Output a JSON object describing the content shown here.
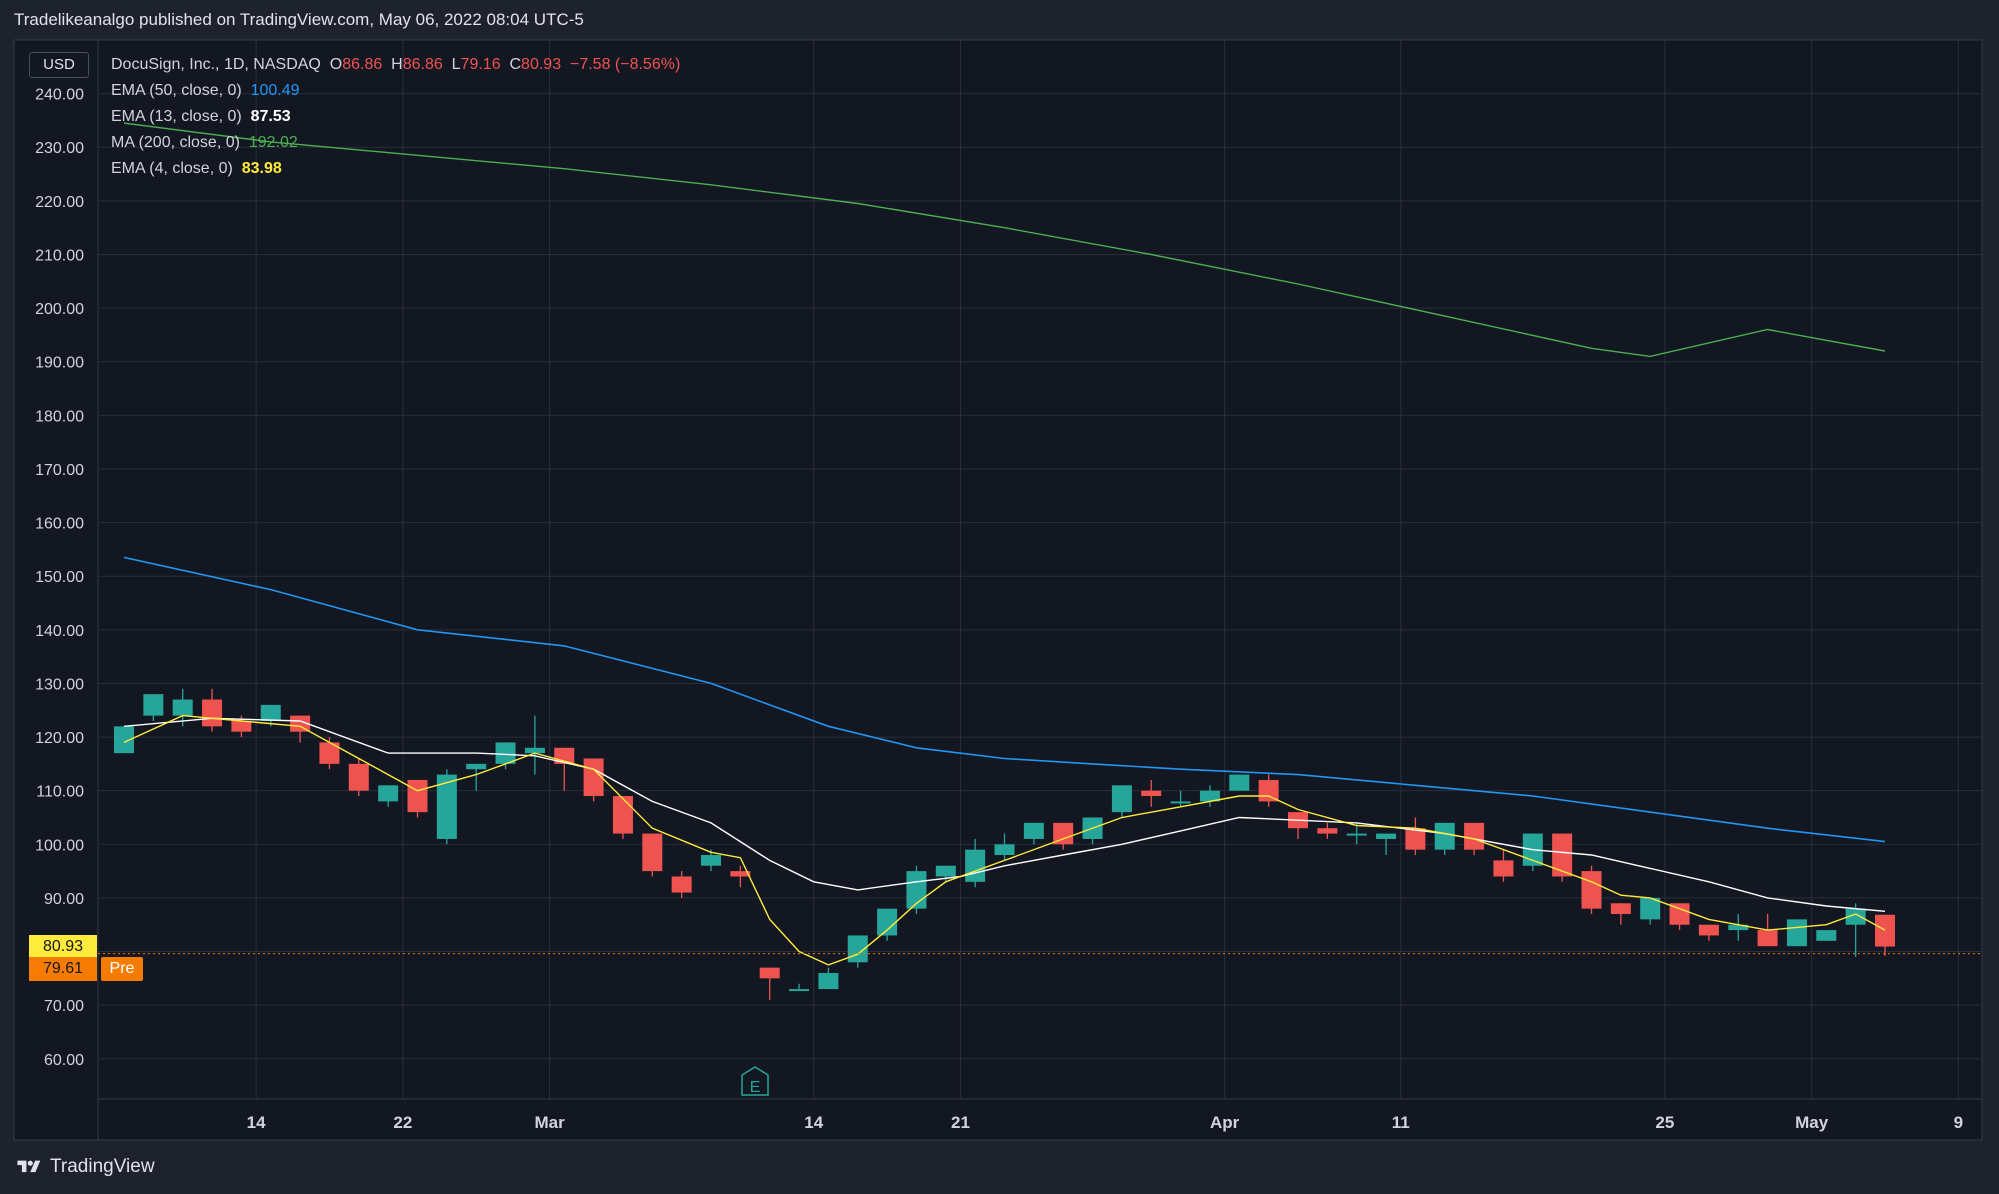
{
  "header": {
    "text": "Tradelikeanalgo published on TradingView.com, May 06, 2022 08:04 UTC-5"
  },
  "footer": {
    "brand": "TradingView"
  },
  "currency": "USD",
  "legend": {
    "symbol": "DocuSign, Inc., 1D, NASDAQ",
    "o_label": "O",
    "o_value": "86.86",
    "h_label": "H",
    "h_value": "86.86",
    "l_label": "L",
    "l_value": "79.16",
    "c_label": "C",
    "c_value": "80.93",
    "change": "−7.58 (−8.56%)",
    "indicators": [
      {
        "label": "EMA (50, close, 0)",
        "value": "100.49",
        "color": "#2196f3"
      },
      {
        "label": "EMA (13, close, 0)",
        "value": "87.53",
        "color": "#ffffff"
      },
      {
        "label": "MA (200, close, 0)",
        "value": "192.02",
        "color": "#4caf50"
      },
      {
        "label": "EMA (4, close, 0)",
        "value": "83.98",
        "color": "#ffeb3b"
      }
    ]
  },
  "price_labels": {
    "last": "80.93",
    "pre": "79.61",
    "pre_tag": "Pre"
  },
  "colors": {
    "background": "#131722",
    "grid": "#2a2e39",
    "up": "#26a69a",
    "down": "#ef5350",
    "ema50": "#2196f3",
    "ema13": "#ffffff",
    "ma200": "#4caf50",
    "ema4": "#ffeb3b",
    "last_price_bg": "#ffeb3b",
    "pre_bg": "#f57c00"
  },
  "chart_data": {
    "type": "candlestick",
    "title": "DocuSign, Inc., 1D, NASDAQ",
    "ylim": [
      52.5,
      250
    ],
    "y_ticks": [
      "60.00",
      "70.00",
      "80.00",
      "90.00",
      "100.00",
      "110.00",
      "120.00",
      "130.00",
      "140.00",
      "150.00",
      "160.00",
      "170.00",
      "180.00",
      "190.00",
      "200.00",
      "210.00",
      "220.00",
      "230.00",
      "240.00"
    ],
    "x_tick_labels": [
      {
        "label": "14",
        "bar": 4.5
      },
      {
        "label": "22",
        "bar": 9.5
      },
      {
        "label": "Mar",
        "bar": 14.5
      },
      {
        "label": "14",
        "bar": 23.5
      },
      {
        "label": "21",
        "bar": 28.5
      },
      {
        "label": "Apr",
        "bar": 37.5
      },
      {
        "label": "11",
        "bar": 43.5
      },
      {
        "label": "25",
        "bar": 52.5
      },
      {
        "label": "May",
        "bar": 57.5
      },
      {
        "label": "9",
        "bar": 62.5
      }
    ],
    "earnings_marker": {
      "label": "E",
      "bar": 21.5
    },
    "candles": [
      {
        "o": 117,
        "h": 122,
        "c": 122,
        "l": 117
      },
      {
        "o": 124,
        "h": 128,
        "c": 128,
        "l": 123
      },
      {
        "o": 124,
        "h": 129,
        "c": 127,
        "l": 122
      },
      {
        "o": 127,
        "h": 129,
        "c": 122,
        "l": 121
      },
      {
        "o": 123,
        "h": 124,
        "c": 121,
        "l": 120
      },
      {
        "o": 123,
        "h": 126,
        "c": 126,
        "l": 122
      },
      {
        "o": 124,
        "h": 124,
        "c": 121,
        "l": 119
      },
      {
        "o": 119,
        "h": 120,
        "c": 115,
        "l": 114
      },
      {
        "o": 115,
        "h": 116,
        "c": 110,
        "l": 109
      },
      {
        "o": 108,
        "h": 111,
        "c": 111,
        "l": 107
      },
      {
        "o": 112,
        "h": 112,
        "c": 106,
        "l": 105
      },
      {
        "o": 101,
        "h": 114,
        "c": 113,
        "l": 100
      },
      {
        "o": 114,
        "h": 115,
        "c": 115,
        "l": 110
      },
      {
        "o": 115,
        "h": 119,
        "c": 119,
        "l": 114
      },
      {
        "o": 117,
        "h": 124,
        "c": 118,
        "l": 113
      },
      {
        "o": 118,
        "h": 118,
        "c": 115,
        "l": 110
      },
      {
        "o": 116,
        "h": 116,
        "c": 109,
        "l": 108
      },
      {
        "o": 109,
        "h": 109,
        "c": 102,
        "l": 101
      },
      {
        "o": 102,
        "h": 102,
        "c": 95,
        "l": 94
      },
      {
        "o": 94,
        "h": 95,
        "c": 91,
        "l": 90
      },
      {
        "o": 96,
        "h": 99,
        "c": 98,
        "l": 95
      },
      {
        "o": 95,
        "h": 96,
        "c": 94,
        "l": 92
      },
      {
        "o": 77,
        "h": 77,
        "c": 75,
        "l": 71
      },
      {
        "o": 73,
        "h": 74,
        "c": 73,
        "l": 73
      },
      {
        "o": 73,
        "h": 77,
        "c": 76,
        "l": 73
      },
      {
        "o": 78,
        "h": 83,
        "c": 83,
        "l": 77
      },
      {
        "o": 83,
        "h": 88,
        "c": 88,
        "l": 82
      },
      {
        "o": 88,
        "h": 96,
        "c": 95,
        "l": 87
      },
      {
        "o": 94,
        "h": 96,
        "c": 96,
        "l": 93
      },
      {
        "o": 93,
        "h": 101,
        "c": 99,
        "l": 92
      },
      {
        "o": 98,
        "h": 102,
        "c": 100,
        "l": 97
      },
      {
        "o": 101,
        "h": 104,
        "c": 104,
        "l": 100
      },
      {
        "o": 104,
        "h": 104,
        "c": 100,
        "l": 99
      },
      {
        "o": 101,
        "h": 105,
        "c": 105,
        "l": 100
      },
      {
        "o": 106,
        "h": 111,
        "c": 111,
        "l": 105
      },
      {
        "o": 110,
        "h": 112,
        "c": 109,
        "l": 107
      },
      {
        "o": 108,
        "h": 110,
        "c": 108,
        "l": 107
      },
      {
        "o": 108,
        "h": 111,
        "c": 110,
        "l": 107
      },
      {
        "o": 110,
        "h": 113,
        "c": 113,
        "l": 110
      },
      {
        "o": 112,
        "h": 113,
        "c": 108,
        "l": 107
      },
      {
        "o": 106,
        "h": 106,
        "c": 103,
        "l": 101
      },
      {
        "o": 103,
        "h": 104,
        "c": 102,
        "l": 101
      },
      {
        "o": 102,
        "h": 104,
        "c": 102,
        "l": 100
      },
      {
        "o": 101,
        "h": 102,
        "c": 102,
        "l": 98
      },
      {
        "o": 103,
        "h": 105,
        "c": 99,
        "l": 98
      },
      {
        "o": 99,
        "h": 104,
        "c": 104,
        "l": 98
      },
      {
        "o": 104,
        "h": 104,
        "c": 99,
        "l": 98
      },
      {
        "o": 97,
        "h": 99,
        "c": 94,
        "l": 93
      },
      {
        "o": 96,
        "h": 102,
        "c": 102,
        "l": 95
      },
      {
        "o": 102,
        "h": 102,
        "c": 94,
        "l": 93
      },
      {
        "o": 95,
        "h": 96,
        "c": 88,
        "l": 87
      },
      {
        "o": 89,
        "h": 89,
        "c": 87,
        "l": 85
      },
      {
        "o": 86,
        "h": 90,
        "c": 90,
        "l": 85
      },
      {
        "o": 89,
        "h": 89,
        "c": 85,
        "l": 84
      },
      {
        "o": 85,
        "h": 85,
        "c": 83,
        "l": 82
      },
      {
        "o": 84,
        "h": 87,
        "c": 85,
        "l": 82
      },
      {
        "o": 84,
        "h": 87,
        "c": 81,
        "l": 81
      },
      {
        "o": 81,
        "h": 86,
        "c": 86,
        "l": 81
      },
      {
        "o": 82,
        "h": 84,
        "c": 84,
        "l": 82
      },
      {
        "o": 85,
        "h": 89,
        "c": 88,
        "l": 79
      },
      {
        "o": 86.86,
        "h": 86.86,
        "c": 80.93,
        "l": 79.16
      }
    ],
    "series": [
      {
        "name": "EMA (50, close, 0)",
        "points": [
          [
            0,
            153.5
          ],
          [
            5,
            147.5
          ],
          [
            10,
            140
          ],
          [
            15,
            137
          ],
          [
            20,
            130
          ],
          [
            22,
            126
          ],
          [
            24,
            122
          ],
          [
            27,
            118
          ],
          [
            30,
            116
          ],
          [
            33,
            115
          ],
          [
            36,
            114
          ],
          [
            40,
            113
          ],
          [
            44,
            111
          ],
          [
            48,
            109
          ],
          [
            52,
            106
          ],
          [
            56,
            103
          ],
          [
            60,
            100.5
          ]
        ]
      },
      {
        "name": "EMA (13, close, 0)",
        "points": [
          [
            0,
            122
          ],
          [
            3,
            123.5
          ],
          [
            6,
            123
          ],
          [
            9,
            117
          ],
          [
            12,
            117
          ],
          [
            14,
            116.5
          ],
          [
            16,
            114
          ],
          [
            18,
            108
          ],
          [
            20,
            104
          ],
          [
            22,
            97
          ],
          [
            23.5,
            93
          ],
          [
            25,
            91.5
          ],
          [
            27,
            93
          ],
          [
            28.5,
            94
          ],
          [
            30,
            96
          ],
          [
            32,
            98
          ],
          [
            34,
            100
          ],
          [
            36,
            102.5
          ],
          [
            38,
            105
          ],
          [
            40,
            104.5
          ],
          [
            42,
            104
          ],
          [
            45,
            102
          ],
          [
            48,
            99
          ],
          [
            50,
            98
          ],
          [
            52,
            95.5
          ],
          [
            54,
            93
          ],
          [
            56,
            90
          ],
          [
            58,
            88.5
          ],
          [
            60,
            87.5
          ]
        ]
      },
      {
        "name": "MA (200, close, 0)",
        "points": [
          [
            0,
            234.5
          ],
          [
            5,
            231
          ],
          [
            10,
            228.5
          ],
          [
            15,
            226
          ],
          [
            20,
            223
          ],
          [
            25,
            219.5
          ],
          [
            30,
            215
          ],
          [
            35,
            210
          ],
          [
            40,
            204.5
          ],
          [
            45,
            198.5
          ],
          [
            50,
            192.5
          ],
          [
            52,
            191
          ],
          [
            56,
            196
          ],
          [
            58,
            194
          ],
          [
            60,
            192
          ]
        ]
      },
      {
        "name": "EMA (4, close, 0)",
        "points": [
          [
            0,
            119
          ],
          [
            2,
            124
          ],
          [
            4,
            123
          ],
          [
            6,
            122
          ],
          [
            8,
            116
          ],
          [
            10,
            110
          ],
          [
            12,
            113
          ],
          [
            14,
            117
          ],
          [
            16,
            114
          ],
          [
            18,
            103
          ],
          [
            20,
            98.5
          ],
          [
            21,
            97.5
          ],
          [
            22,
            86
          ],
          [
            23,
            80
          ],
          [
            24,
            77.5
          ],
          [
            25,
            79.5
          ],
          [
            26,
            84
          ],
          [
            27,
            89
          ],
          [
            28,
            93
          ],
          [
            30,
            97
          ],
          [
            32,
            101
          ],
          [
            34,
            105
          ],
          [
            36,
            107
          ],
          [
            38,
            109
          ],
          [
            39,
            109
          ],
          [
            40,
            106.5
          ],
          [
            42,
            103.5
          ],
          [
            44,
            103
          ],
          [
            46,
            101
          ],
          [
            48,
            97
          ],
          [
            50,
            93
          ],
          [
            51,
            90.5
          ],
          [
            52,
            90
          ],
          [
            54,
            86
          ],
          [
            56,
            84
          ],
          [
            58,
            85
          ],
          [
            59,
            87
          ],
          [
            60,
            84
          ]
        ]
      }
    ]
  }
}
